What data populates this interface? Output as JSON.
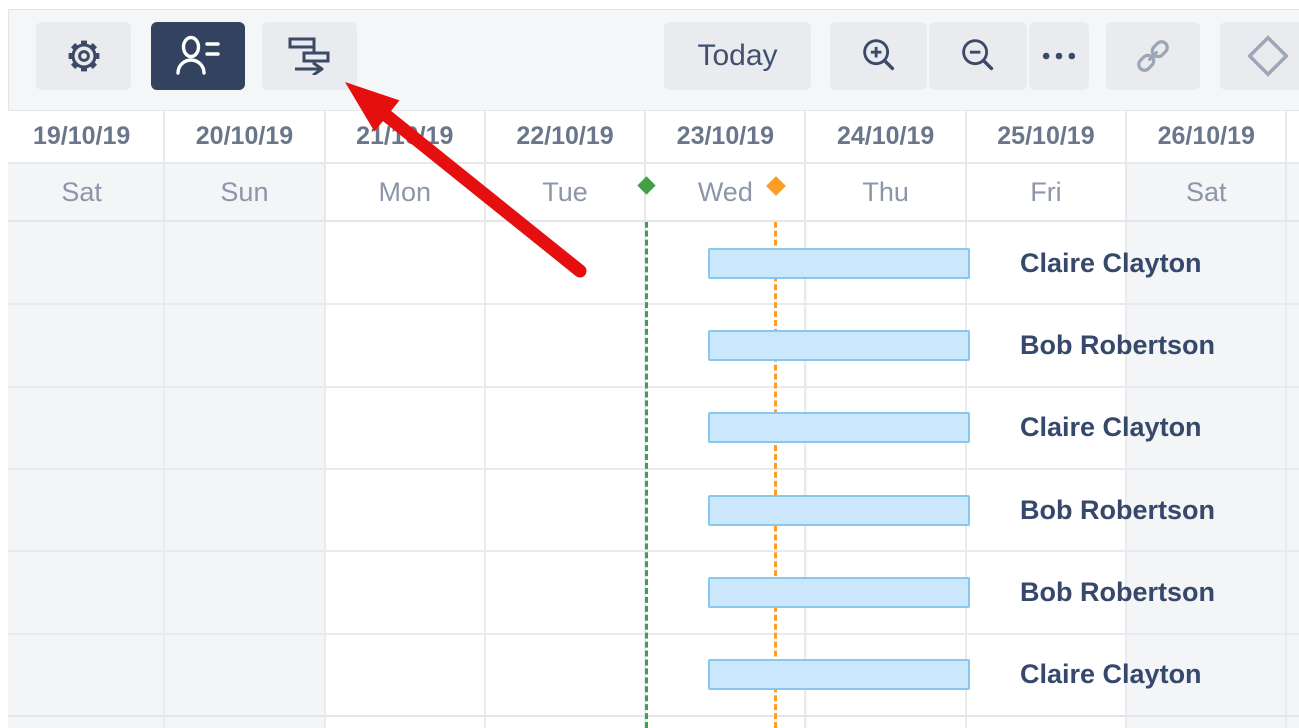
{
  "toolbar": {
    "today_label": "Today",
    "buttons": [
      {
        "id": "settings",
        "icon": "gear-icon",
        "active": false,
        "enabled": true
      },
      {
        "id": "resources",
        "icon": "person-list-icon",
        "active": true,
        "enabled": true
      },
      {
        "id": "gantt-view",
        "icon": "gantt-bars-icon",
        "active": false,
        "enabled": true
      },
      {
        "id": "today",
        "label": "Today",
        "active": false,
        "enabled": true
      },
      {
        "id": "zoom-in",
        "icon": "zoom-in-icon",
        "active": false,
        "enabled": true
      },
      {
        "id": "zoom-out",
        "icon": "zoom-out-icon",
        "active": false,
        "enabled": true
      },
      {
        "id": "more",
        "icon": "ellipsis-icon",
        "active": false,
        "enabled": true
      },
      {
        "id": "link",
        "icon": "link-icon",
        "active": false,
        "enabled": false
      },
      {
        "id": "milestone",
        "icon": "diamond-icon",
        "active": false,
        "enabled": false
      }
    ]
  },
  "timeline": {
    "columns": [
      {
        "date": "19/10/19",
        "day": "Sat",
        "weekend": true
      },
      {
        "date": "20/10/19",
        "day": "Sun",
        "weekend": true
      },
      {
        "date": "21/10/19",
        "day": "Mon",
        "weekend": false
      },
      {
        "date": "22/10/19",
        "day": "Tue",
        "weekend": false
      },
      {
        "date": "23/10/19",
        "day": "Wed",
        "weekend": false
      },
      {
        "date": "24/10/19",
        "day": "Thu",
        "weekend": false
      },
      {
        "date": "25/10/19",
        "day": "Fri",
        "weekend": false
      },
      {
        "date": "26/10/19",
        "day": "Sat",
        "weekend": true
      }
    ],
    "trailing_partial_column": {
      "weekend": true
    }
  },
  "markers": {
    "start_marker": {
      "color": "#43a047"
    },
    "time_marker": {
      "color": "#fb9e23"
    }
  },
  "rows": [
    {
      "assignee": "Claire Clayton"
    },
    {
      "assignee": "Bob Robertson"
    },
    {
      "assignee": "Claire Clayton"
    },
    {
      "assignee": "Bob Robertson"
    },
    {
      "assignee": "Bob Robertson"
    },
    {
      "assignee": "Claire Clayton"
    }
  ],
  "colors": {
    "accent_navy": "#32425f",
    "icon_navy": "#3a4a67",
    "disabled_icon": "#9da6b6",
    "button_bg": "#e9ebef",
    "panel_bg": "#f5f6f8",
    "weekend_bg": "#f4f5f7",
    "bar_fill": "#cbe7fb",
    "bar_border": "#8ac6ee",
    "annotation_arrow": "#e60f0f"
  }
}
